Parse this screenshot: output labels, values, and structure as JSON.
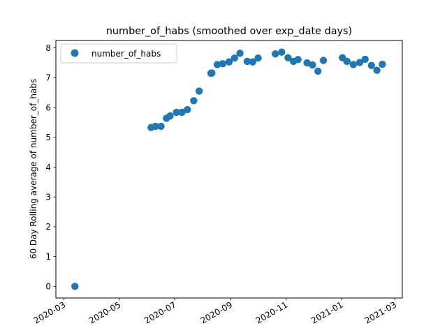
{
  "chart_data": {
    "type": "scatter",
    "title": "number_of_habs (smoothed over exp_date days)",
    "xlabel": "",
    "ylabel": "60 Day Rolling average of number_of_habs",
    "xlim": [
      "2020-02-21",
      "2021-03-09"
    ],
    "ylim": [
      -0.39,
      8.25
    ],
    "x_ticks": [
      "2020-03",
      "2020-05",
      "2020-07",
      "2020-09",
      "2020-11",
      "2021-01",
      "2021-03"
    ],
    "y_ticks": [
      0,
      1,
      2,
      3,
      4,
      5,
      6,
      7,
      8
    ],
    "grid": false,
    "legend": {
      "position": "top-left",
      "entries": [
        "number_of_habs"
      ]
    },
    "series": [
      {
        "name": "number_of_habs",
        "color": "#1f77b4",
        "points": [
          {
            "x": "2020-03-13",
            "y": 0.0
          },
          {
            "x": "2020-06-05",
            "y": 5.33
          },
          {
            "x": "2020-06-10",
            "y": 5.37
          },
          {
            "x": "2020-06-16",
            "y": 5.37
          },
          {
            "x": "2020-06-22",
            "y": 5.64
          },
          {
            "x": "2020-06-26",
            "y": 5.72
          },
          {
            "x": "2020-07-03",
            "y": 5.84
          },
          {
            "x": "2020-07-09",
            "y": 5.84
          },
          {
            "x": "2020-07-15",
            "y": 5.93
          },
          {
            "x": "2020-07-22",
            "y": 6.23
          },
          {
            "x": "2020-07-28",
            "y": 6.55
          },
          {
            "x": "2020-08-10",
            "y": 7.15
          },
          {
            "x": "2020-08-11",
            "y": 7.16
          },
          {
            "x": "2020-08-17",
            "y": 7.44
          },
          {
            "x": "2020-08-23",
            "y": 7.47
          },
          {
            "x": "2020-08-30",
            "y": 7.53
          },
          {
            "x": "2020-09-05",
            "y": 7.66
          },
          {
            "x": "2020-09-11",
            "y": 7.82
          },
          {
            "x": "2020-09-19",
            "y": 7.55
          },
          {
            "x": "2020-09-25",
            "y": 7.53
          },
          {
            "x": "2020-10-01",
            "y": 7.66
          },
          {
            "x": "2020-10-20",
            "y": 7.8
          },
          {
            "x": "2020-10-27",
            "y": 7.86
          },
          {
            "x": "2020-11-03",
            "y": 7.67
          },
          {
            "x": "2020-11-09",
            "y": 7.55
          },
          {
            "x": "2020-11-14",
            "y": 7.61
          },
          {
            "x": "2020-11-24",
            "y": 7.5
          },
          {
            "x": "2020-11-30",
            "y": 7.43
          },
          {
            "x": "2020-12-06",
            "y": 7.22
          },
          {
            "x": "2020-12-12",
            "y": 7.58
          },
          {
            "x": "2021-01-02",
            "y": 7.67
          },
          {
            "x": "2021-01-07",
            "y": 7.55
          },
          {
            "x": "2021-01-14",
            "y": 7.44
          },
          {
            "x": "2021-01-21",
            "y": 7.51
          },
          {
            "x": "2021-01-27",
            "y": 7.62
          },
          {
            "x": "2021-02-03",
            "y": 7.41
          },
          {
            "x": "2021-02-09",
            "y": 7.25
          },
          {
            "x": "2021-02-15",
            "y": 7.45
          }
        ]
      }
    ]
  }
}
